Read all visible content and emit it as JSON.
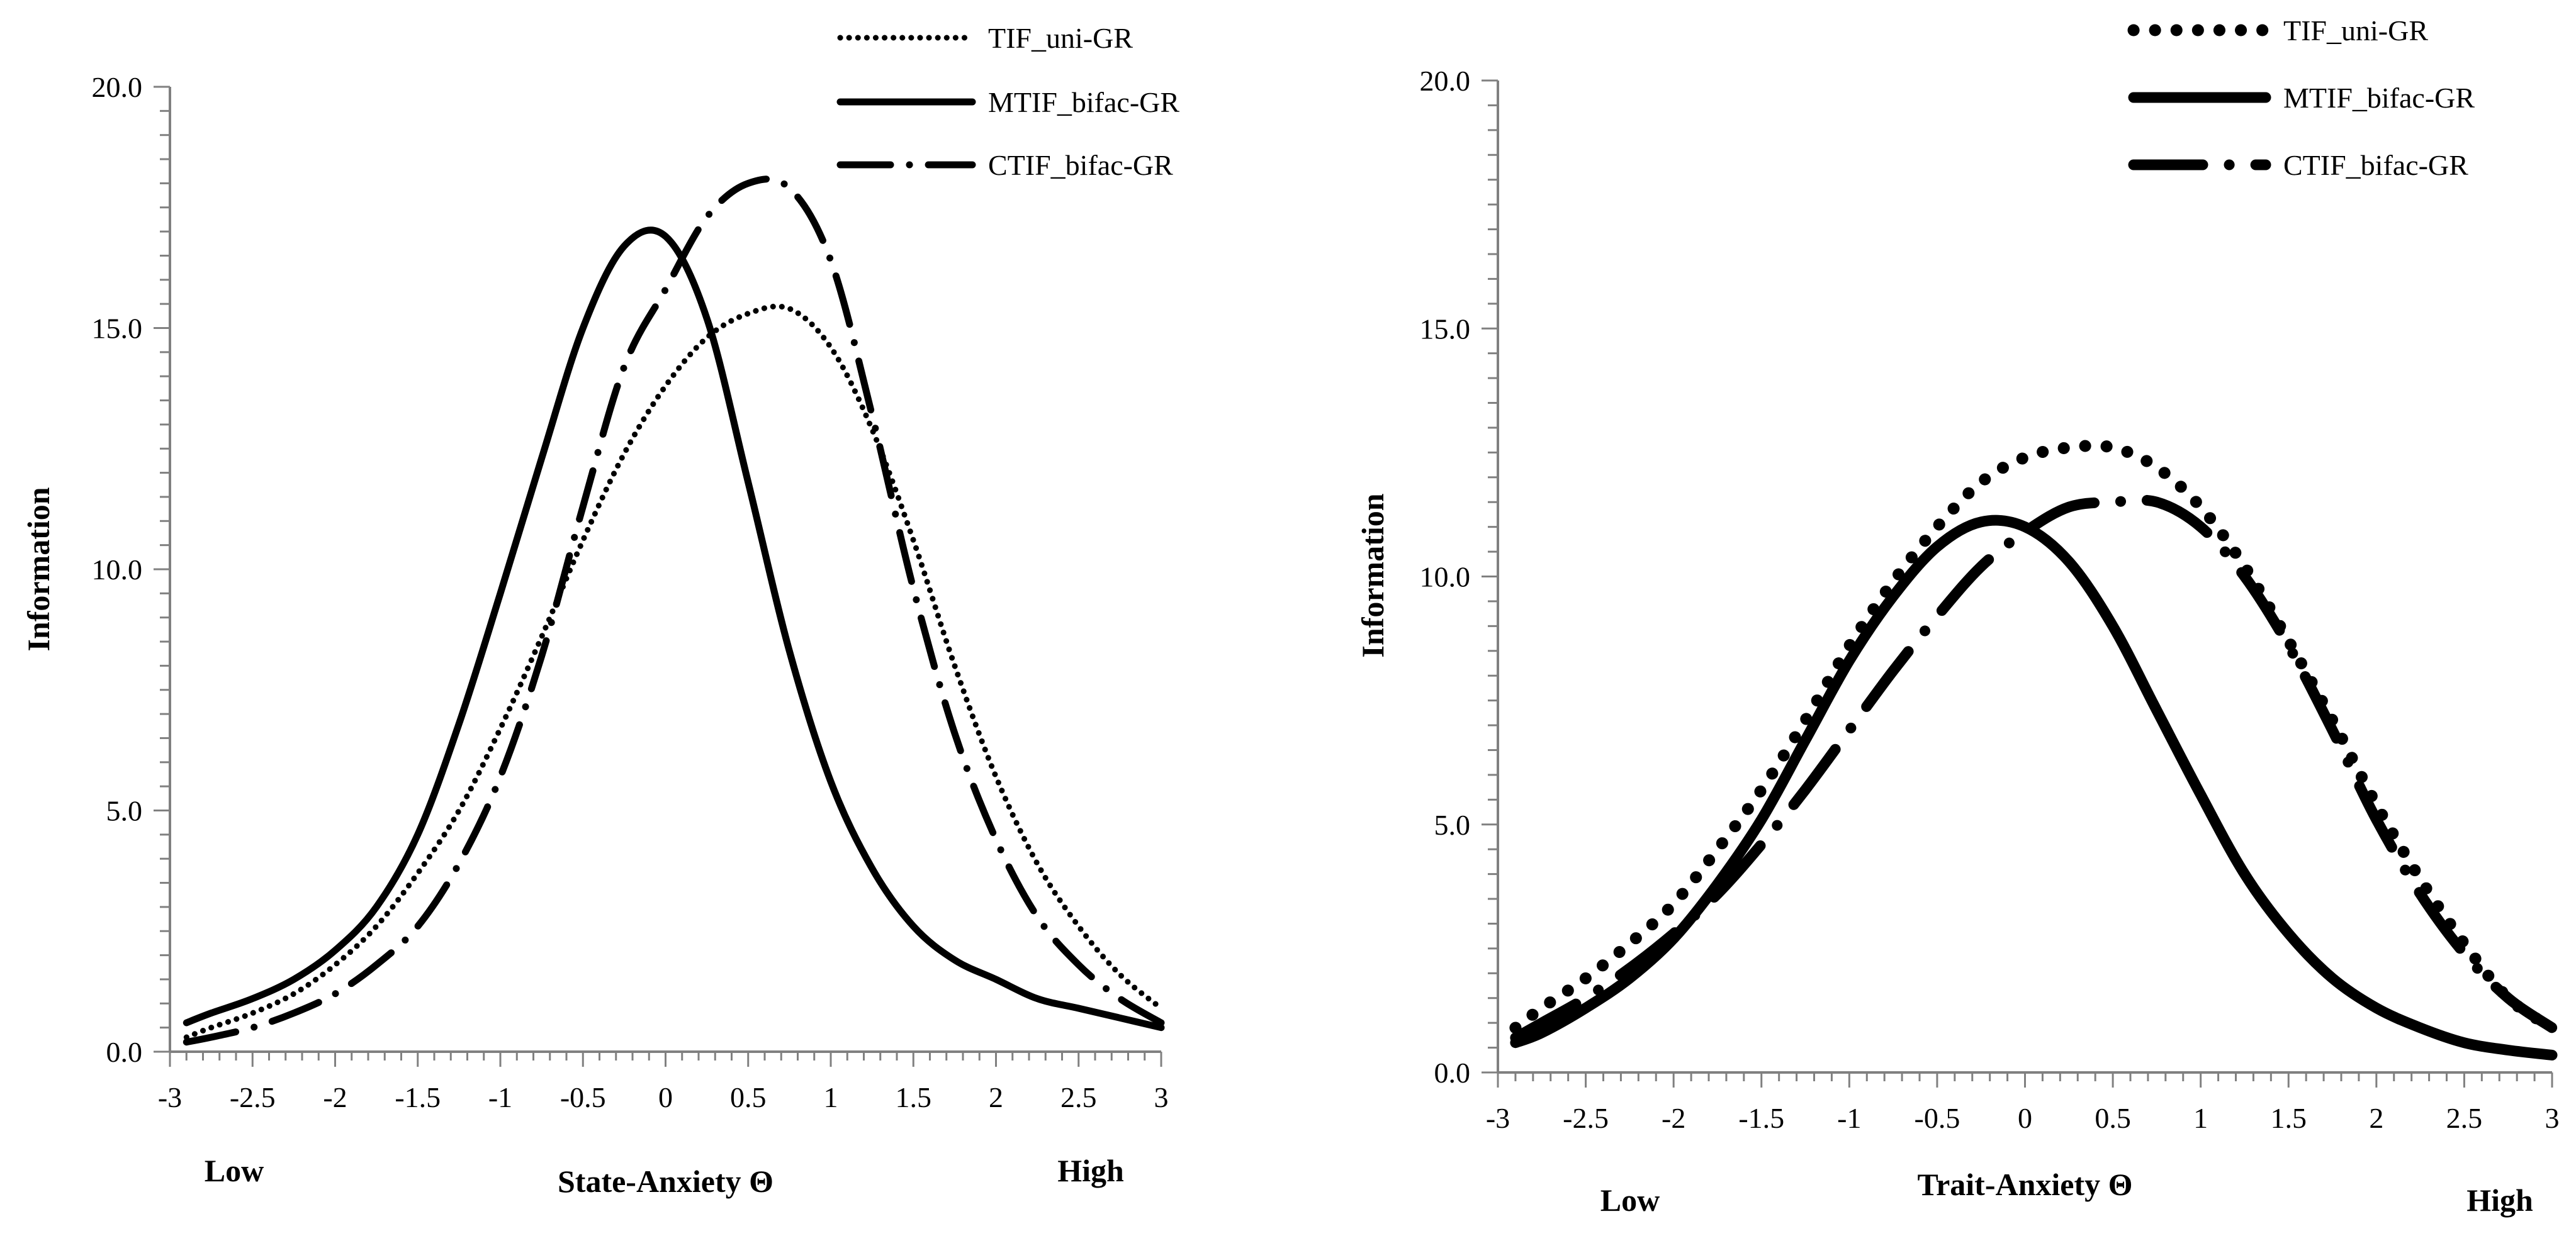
{
  "figure": {
    "background": "#ffffff",
    "ink": "#000000"
  },
  "chart_data": [
    {
      "type": "line",
      "panel": "left",
      "title": "",
      "xlabel": "State-Anxiety Θ",
      "ylabel": "Information",
      "x_low_label": "Low",
      "x_high_label": "High",
      "xlim": [
        -3,
        3
      ],
      "ylim": [
        0,
        20
      ],
      "xticks": [
        -3,
        -2.5,
        -2,
        -1.5,
        -1,
        -0.5,
        0,
        0.5,
        1,
        1.5,
        2,
        2.5,
        3
      ],
      "xtick_labels": [
        "-3",
        "-2.5",
        "-2",
        "-1.5",
        "-1",
        "-0.5",
        "0",
        "0.5",
        "1",
        "1.5",
        "2",
        "2.5",
        "3"
      ],
      "yticks": [
        0,
        5,
        10,
        15,
        20
      ],
      "ytick_labels": [
        "0.0",
        "5.0",
        "10.0",
        "15.0",
        "20.0"
      ],
      "grid": false,
      "legend_position": "top-right",
      "x": [
        -2.9,
        -2.75,
        -2.5,
        -2.25,
        -2,
        -1.75,
        -1.5,
        -1.25,
        -1,
        -0.75,
        -0.5,
        -0.25,
        0,
        0.25,
        0.5,
        0.75,
        1,
        1.25,
        1.5,
        1.75,
        2,
        2.25,
        2.5,
        2.75,
        3
      ],
      "series": [
        {
          "name": "TIF_uni-GR",
          "style": "dotted",
          "values": [
            0.3,
            0.5,
            0.8,
            1.2,
            1.8,
            2.6,
            3.7,
            5.0,
            6.7,
            8.6,
            10.6,
            12.4,
            13.8,
            14.8,
            15.3,
            15.4,
            14.6,
            12.9,
            10.6,
            8.0,
            5.7,
            3.9,
            2.6,
            1.6,
            0.9
          ]
        },
        {
          "name": "MTIF_bifac-GR",
          "style": "solid",
          "values": [
            0.6,
            0.8,
            1.1,
            1.5,
            2.1,
            3.0,
            4.5,
            6.8,
            9.5,
            12.3,
            15.0,
            16.7,
            16.9,
            15.2,
            11.8,
            8.3,
            5.6,
            3.8,
            2.6,
            1.9,
            1.5,
            1.1,
            0.9,
            0.7,
            0.5
          ]
        },
        {
          "name": "CTIF_bifac-GR",
          "style": "dash-dot",
          "values": [
            0.2,
            0.3,
            0.5,
            0.8,
            1.2,
            1.8,
            2.6,
            3.9,
            5.7,
            8.2,
            11.3,
            14.2,
            15.8,
            17.3,
            18.0,
            17.9,
            16.4,
            13.2,
            9.6,
            6.6,
            4.4,
            2.8,
            1.8,
            1.1,
            0.6
          ]
        }
      ]
    },
    {
      "type": "line",
      "panel": "right",
      "title": "",
      "xlabel": "Trait-Anxiety Θ",
      "ylabel": "Information",
      "x_low_label": "Low",
      "x_high_label": "High",
      "xlim": [
        -3,
        3
      ],
      "ylim": [
        0,
        20
      ],
      "xticks": [
        -3,
        -2.5,
        -2,
        -1.5,
        -1,
        -0.5,
        0,
        0.5,
        1,
        1.5,
        2,
        2.5,
        3
      ],
      "xtick_labels": [
        "-3",
        "-2.5",
        "-2",
        "-1.5",
        "-1",
        "-0.5",
        "0",
        "0.5",
        "1",
        "1.5",
        "2",
        "2.5",
        "3"
      ],
      "yticks": [
        0,
        5,
        10,
        15,
        20
      ],
      "ytick_labels": [
        "0.0",
        "5.0",
        "10.0",
        "15.0",
        "20.0"
      ],
      "grid": false,
      "legend_position": "top-right",
      "x": [
        -2.9,
        -2.75,
        -2.5,
        -2.25,
        -2,
        -1.75,
        -1.5,
        -1.25,
        -1,
        -0.75,
        -0.5,
        -0.25,
        0,
        0.25,
        0.5,
        0.75,
        1,
        1.25,
        1.5,
        1.75,
        2,
        2.25,
        2.5,
        2.75,
        3
      ],
      "series": [
        {
          "name": "TIF_uni-GR",
          "style": "dotted",
          "values": [
            0.9,
            1.3,
            1.9,
            2.6,
            3.4,
            4.5,
            5.7,
            7.1,
            8.6,
            9.9,
            11.0,
            11.9,
            12.4,
            12.6,
            12.6,
            12.2,
            11.4,
            10.2,
            8.7,
            7.1,
            5.4,
            3.9,
            2.6,
            1.5,
            0.9
          ]
        },
        {
          "name": "MTIF_bifac-GR",
          "style": "solid",
          "values": [
            0.6,
            0.8,
            1.3,
            1.9,
            2.7,
            3.8,
            5.1,
            6.7,
            8.3,
            9.6,
            10.6,
            11.1,
            11.0,
            10.3,
            9.0,
            7.3,
            5.6,
            4.0,
            2.8,
            1.9,
            1.3,
            0.9,
            0.6,
            0.45,
            0.35
          ]
        },
        {
          "name": "CTIF_bifac-GR",
          "style": "dash-dot",
          "values": [
            0.7,
            1.0,
            1.5,
            2.1,
            2.8,
            3.6,
            4.6,
            5.7,
            6.9,
            8.1,
            9.2,
            10.2,
            10.9,
            11.4,
            11.5,
            11.5,
            11.0,
            10.0,
            8.6,
            6.9,
            5.1,
            3.6,
            2.4,
            1.5,
            0.9
          ]
        }
      ]
    }
  ]
}
